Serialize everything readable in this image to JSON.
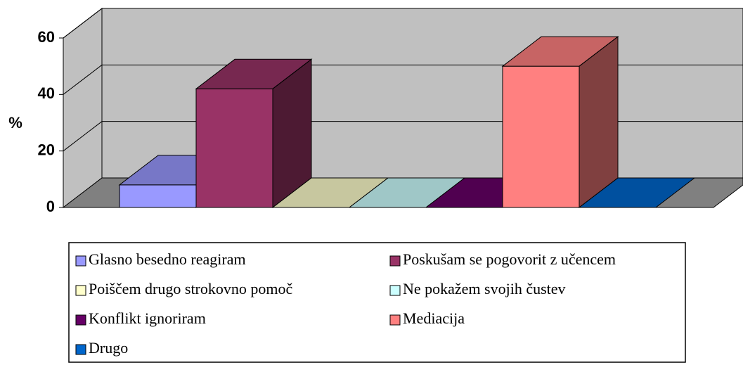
{
  "chart_data": {
    "type": "bar3d",
    "y_label": "%",
    "ylim": [
      0,
      60
    ],
    "yticks": [
      0,
      20,
      40,
      60
    ],
    "grid": true,
    "series": [
      {
        "name": "Glasno besedno reagiram",
        "color": "#9999ff",
        "values": [
          8
        ]
      },
      {
        "name": "Poskušam se pogovorit z učencem",
        "color": "#993366",
        "values": [
          42
        ]
      },
      {
        "name": "Poiščem drugo strokovno pomoč",
        "color": "#ffffcc",
        "values": [
          0
        ]
      },
      {
        "name": "Ne pokažem svojih čustev",
        "color": "#ccffff",
        "values": [
          0
        ]
      },
      {
        "name": "Konflikt ignoriram",
        "color": "#660066",
        "values": [
          0
        ]
      },
      {
        "name": "Mediacija",
        "color": "#ff8080",
        "values": [
          50
        ]
      },
      {
        "name": "Drugo",
        "color": "#0066cc",
        "values": [
          0
        ]
      }
    ]
  }
}
